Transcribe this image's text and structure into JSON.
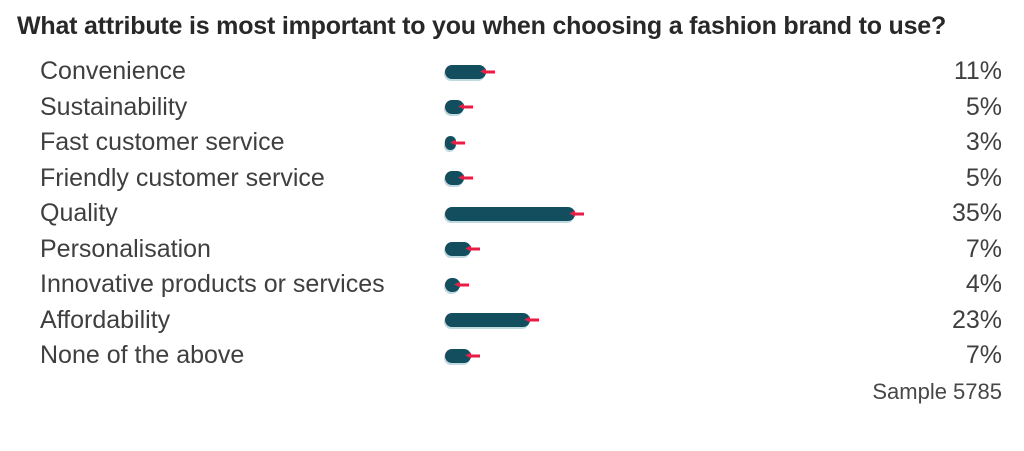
{
  "chart_data": {
    "type": "bar",
    "orientation": "horizontal",
    "title": "What attribute is most important to you when choosing a fashion brand to use?",
    "categories": [
      "Convenience",
      "Sustainability",
      "Fast customer service",
      "Friendly customer service",
      "Quality",
      "Personalisation",
      "Innovative products or services",
      "Affordability",
      "None of the above"
    ],
    "values": [
      11,
      5,
      3,
      5,
      35,
      7,
      4,
      23,
      7
    ],
    "unit": "%",
    "value_labels": [
      "11%",
      "5%",
      "3%",
      "5%",
      "35%",
      "7%",
      "4%",
      "23%",
      "7%"
    ],
    "xlim": [
      0,
      35
    ],
    "grid": false,
    "legend": false,
    "footnote": "Sample 5785",
    "colors": {
      "bar": "#134e5e",
      "marker": "#e61e45",
      "bar_shadow": "#bfd9e1",
      "title_text": "#282828",
      "label_text": "#3f3f3f"
    }
  }
}
